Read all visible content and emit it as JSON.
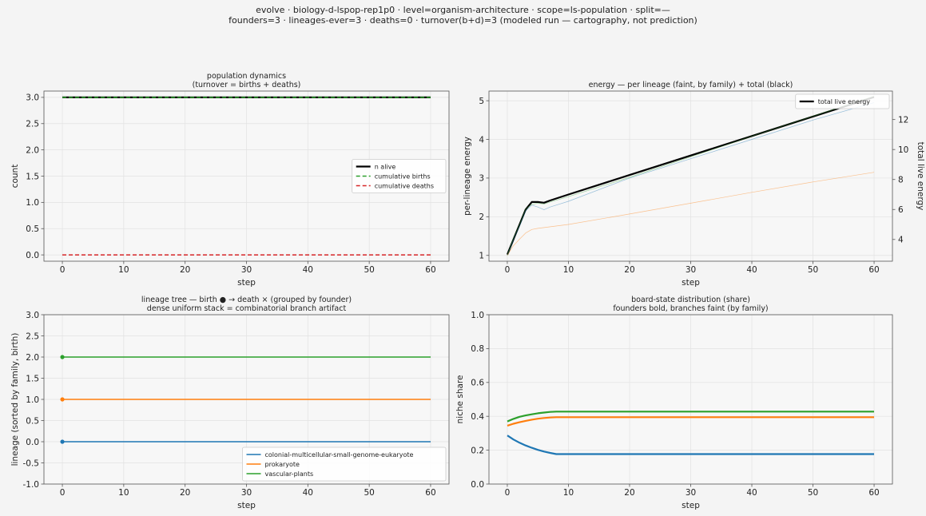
{
  "suptitle": {
    "line1": "evolve · biology-d-lspop-rep1p0 · level=organism-architecture · scope=ls-population · split=—",
    "line2": "founders=3 · lineages-ever=3 · deaths=0 · turnover(b+d)=3   (modeled run — cartography, not prediction)"
  },
  "colors": {
    "blue": "#1f77b4",
    "orange": "#ff7f0e",
    "green": "#2ca02c",
    "red": "#d62728",
    "black": "#000000"
  },
  "chart_data": [
    {
      "id": "population",
      "type": "line",
      "title": "population dynamics",
      "subtitle": "(turnover = births + deaths)",
      "xlabel": "step",
      "ylabel": "count",
      "xlim": [
        -3,
        63
      ],
      "ylim": [
        -0.12,
        3.12
      ],
      "xticks": [
        0,
        10,
        20,
        30,
        40,
        50,
        60
      ],
      "yticks": [
        0.0,
        0.5,
        1.0,
        1.5,
        2.0,
        2.5,
        3.0
      ],
      "ytick_decimals": 1,
      "grid": true,
      "legend": "center-right",
      "series": [
        {
          "name": "n alive",
          "color": "#000000",
          "dash": "solid",
          "width": 2.2,
          "x": [
            0,
            60
          ],
          "y": [
            3,
            3
          ]
        },
        {
          "name": "cumulative births",
          "color": "#2ca02c",
          "dash": "dashed",
          "width": 1.5,
          "x": [
            0,
            60
          ],
          "y": [
            3,
            3
          ]
        },
        {
          "name": "cumulative deaths",
          "color": "#d62728",
          "dash": "dashed",
          "width": 1.5,
          "x": [
            0,
            60
          ],
          "y": [
            0,
            0
          ]
        }
      ]
    },
    {
      "id": "energy",
      "type": "line",
      "title": "energy — per lineage (faint, by family) + total (black)",
      "xlabel": "step",
      "ylabel": "per-lineage energy",
      "y2label": "total live energy",
      "xlim": [
        -3,
        63
      ],
      "ylim": [
        0.85,
        5.25
      ],
      "y2lim": [
        2.55,
        13.9
      ],
      "xticks": [
        0,
        10,
        20,
        30,
        40,
        50,
        60
      ],
      "yticks": [
        1,
        2,
        3,
        4,
        5
      ],
      "y2ticks": [
        4,
        6,
        8,
        10,
        12
      ],
      "ytick_decimals": 0,
      "grid": true,
      "legend": "top-right",
      "series": [
        {
          "name": "total live energy",
          "axis": "right",
          "color": "#000000",
          "dash": "solid",
          "width": 2.2,
          "x": [
            0,
            1,
            2,
            3,
            4,
            5,
            6,
            7,
            10,
            20,
            30,
            40,
            50,
            60
          ],
          "y": [
            3.0,
            4.0,
            5.0,
            6.0,
            6.5,
            6.5,
            6.45,
            6.6,
            7.0,
            8.3,
            9.6,
            10.9,
            12.2,
            13.5
          ]
        },
        {
          "name": "",
          "axis": "left",
          "color": "#1f77b4",
          "dash": "solid",
          "width": 0.7,
          "opacity": 0.45,
          "x": [
            0,
            1,
            2,
            3,
            4,
            5,
            6,
            7,
            10,
            20,
            30,
            40,
            50,
            60
          ],
          "y": [
            1.0,
            1.4,
            1.75,
            2.15,
            2.3,
            2.25,
            2.18,
            2.25,
            2.4,
            3.0,
            3.5,
            4.0,
            4.5,
            4.95
          ]
        },
        {
          "name": "",
          "axis": "left",
          "color": "#2ca02c",
          "dash": "solid",
          "width": 0.7,
          "opacity": 0.45,
          "x": [
            0,
            1,
            2,
            3,
            4,
            5,
            6,
            7,
            10,
            20,
            30,
            40,
            50,
            60
          ],
          "y": [
            1.0,
            1.45,
            1.8,
            2.2,
            2.32,
            2.35,
            2.33,
            2.38,
            2.52,
            3.02,
            3.55,
            4.08,
            4.6,
            5.12
          ]
        },
        {
          "name": "",
          "axis": "left",
          "color": "#ff7f0e",
          "dash": "solid",
          "width": 0.7,
          "opacity": 0.45,
          "x": [
            0,
            1,
            2,
            3,
            4,
            5,
            10,
            20,
            30,
            40,
            50,
            60
          ],
          "y": [
            1.0,
            1.25,
            1.42,
            1.58,
            1.67,
            1.7,
            1.8,
            2.07,
            2.35,
            2.63,
            2.9,
            3.15
          ]
        }
      ]
    },
    {
      "id": "lineage-tree",
      "type": "line",
      "title": "lineage tree — birth ● → death ×  (grouped by founder)",
      "subtitle": "dense uniform stack = combinatorial branch artifact",
      "xlabel": "step",
      "ylabel": "lineage (sorted by family, birth)",
      "xlim": [
        -3,
        63
      ],
      "ylim": [
        -1.0,
        3.0
      ],
      "xticks": [
        0,
        10,
        20,
        30,
        40,
        50,
        60
      ],
      "yticks": [
        -1.0,
        -0.5,
        0.0,
        0.5,
        1.0,
        1.5,
        2.0,
        2.5,
        3.0
      ],
      "ytick_decimals": 1,
      "grid": true,
      "legend": "bottom-right",
      "series": [
        {
          "name": "colonial-multicellular-small-genome-eukaryote",
          "color": "#1f77b4",
          "dash": "solid",
          "width": 1.5,
          "x": [
            0,
            60
          ],
          "y": [
            0,
            0
          ],
          "birth_marker": true
        },
        {
          "name": "prokaryote",
          "color": "#ff7f0e",
          "dash": "solid",
          "width": 1.5,
          "x": [
            0,
            60
          ],
          "y": [
            1,
            1
          ],
          "birth_marker": true
        },
        {
          "name": "vascular-plants",
          "color": "#2ca02c",
          "dash": "solid",
          "width": 1.5,
          "x": [
            0,
            60
          ],
          "y": [
            2,
            2
          ],
          "birth_marker": true
        }
      ]
    },
    {
      "id": "board-state",
      "type": "line",
      "title": "board-state distribution (share)",
      "subtitle": "founders bold, branches faint (by family)",
      "xlabel": "step",
      "ylabel": "niche share",
      "xlim": [
        -3,
        63
      ],
      "ylim": [
        0.0,
        1.0
      ],
      "xticks": [
        0,
        10,
        20,
        30,
        40,
        50,
        60
      ],
      "yticks": [
        0.0,
        0.2,
        0.4,
        0.6,
        0.8,
        1.0
      ],
      "ytick_decimals": 1,
      "grid": true,
      "series": [
        {
          "name": "",
          "color": "#2ca02c",
          "dash": "solid",
          "width": 2.2,
          "x": [
            0,
            1,
            2,
            3,
            4,
            5,
            6,
            7,
            8,
            60
          ],
          "y": [
            0.37,
            0.385,
            0.397,
            0.405,
            0.412,
            0.418,
            0.422,
            0.426,
            0.428,
            0.428
          ]
        },
        {
          "name": "",
          "color": "#ff7f0e",
          "dash": "solid",
          "width": 2.2,
          "x": [
            0,
            1,
            2,
            3,
            4,
            5,
            6,
            7,
            8,
            60
          ],
          "y": [
            0.345,
            0.356,
            0.365,
            0.373,
            0.38,
            0.386,
            0.39,
            0.393,
            0.395,
            0.395
          ]
        },
        {
          "name": "",
          "color": "#1f77b4",
          "dash": "solid",
          "width": 2.2,
          "x": [
            0,
            1,
            2,
            3,
            4,
            5,
            6,
            7,
            8,
            60
          ],
          "y": [
            0.287,
            0.263,
            0.244,
            0.228,
            0.214,
            0.202,
            0.192,
            0.184,
            0.177,
            0.177
          ]
        }
      ]
    }
  ]
}
